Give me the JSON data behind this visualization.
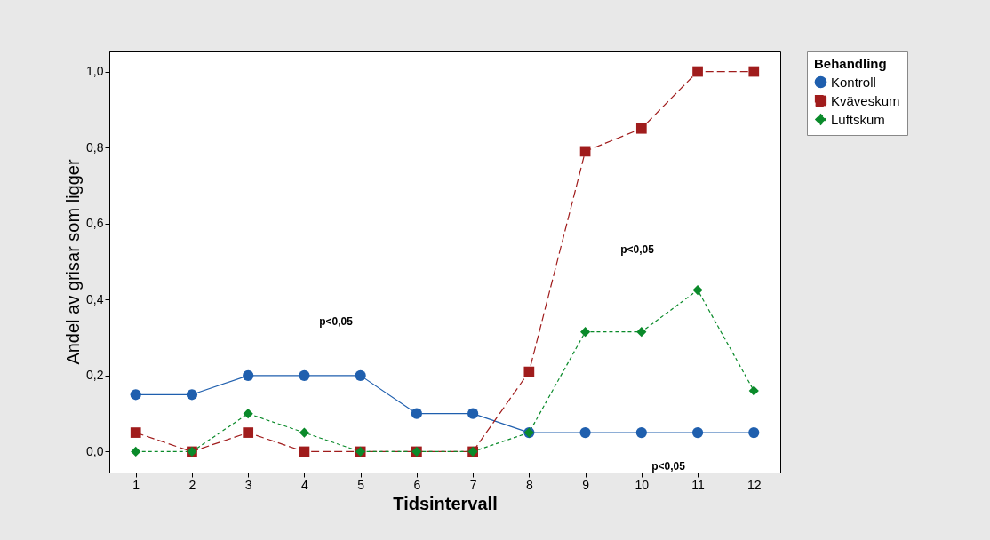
{
  "chart_data": {
    "type": "line",
    "xlabel": "Tidsintervall",
    "ylabel": "Andel av grisar som ligger",
    "legend_title": "Behandling",
    "legend": "top right",
    "grid": false,
    "x": [
      1,
      2,
      3,
      4,
      5,
      6,
      7,
      8,
      9,
      10,
      11,
      12
    ],
    "xlim": [
      0.53,
      12.47
    ],
    "xticks": [
      1,
      2,
      3,
      4,
      5,
      6,
      7,
      8,
      9,
      10,
      11,
      12
    ],
    "ylim": [
      -0.055,
      1.055
    ],
    "yticks": [
      {
        "value": 0,
        "label": "0,0"
      },
      {
        "value": 0.2,
        "label": "0,2"
      },
      {
        "value": 0.4,
        "label": "0,4"
      },
      {
        "value": 0.6,
        "label": "0,6"
      },
      {
        "value": 0.8,
        "label": "0,8"
      },
      {
        "value": 1,
        "label": "1,0"
      }
    ],
    "series": [
      {
        "name": "Kontroll",
        "color": "#1f5fae",
        "marker": "circle",
        "line_style": "solid",
        "values": [
          0.15,
          0.15,
          0.2,
          0.2,
          0.2,
          0.1,
          0.1,
          0.05,
          0.05,
          0.05,
          0.05,
          0.05
        ]
      },
      {
        "name": "Kväveskum",
        "color": "#a01c1c",
        "marker": "square",
        "line_style": "dashed",
        "values": [
          0.05,
          0,
          0.05,
          0,
          0,
          0,
          0,
          0.21,
          0.79,
          0.85,
          1,
          1
        ]
      },
      {
        "name": "Luftskum",
        "color": "#0a8a2a",
        "marker": "diamond",
        "line_style": "dotted",
        "values": [
          0,
          0,
          0.1,
          0.05,
          0,
          0,
          0,
          0.05,
          0.315,
          0.315,
          0.425,
          0.16
        ]
      }
    ],
    "annotations": [
      "p<0,05",
      "p<0,05",
      "p<0,05"
    ]
  }
}
